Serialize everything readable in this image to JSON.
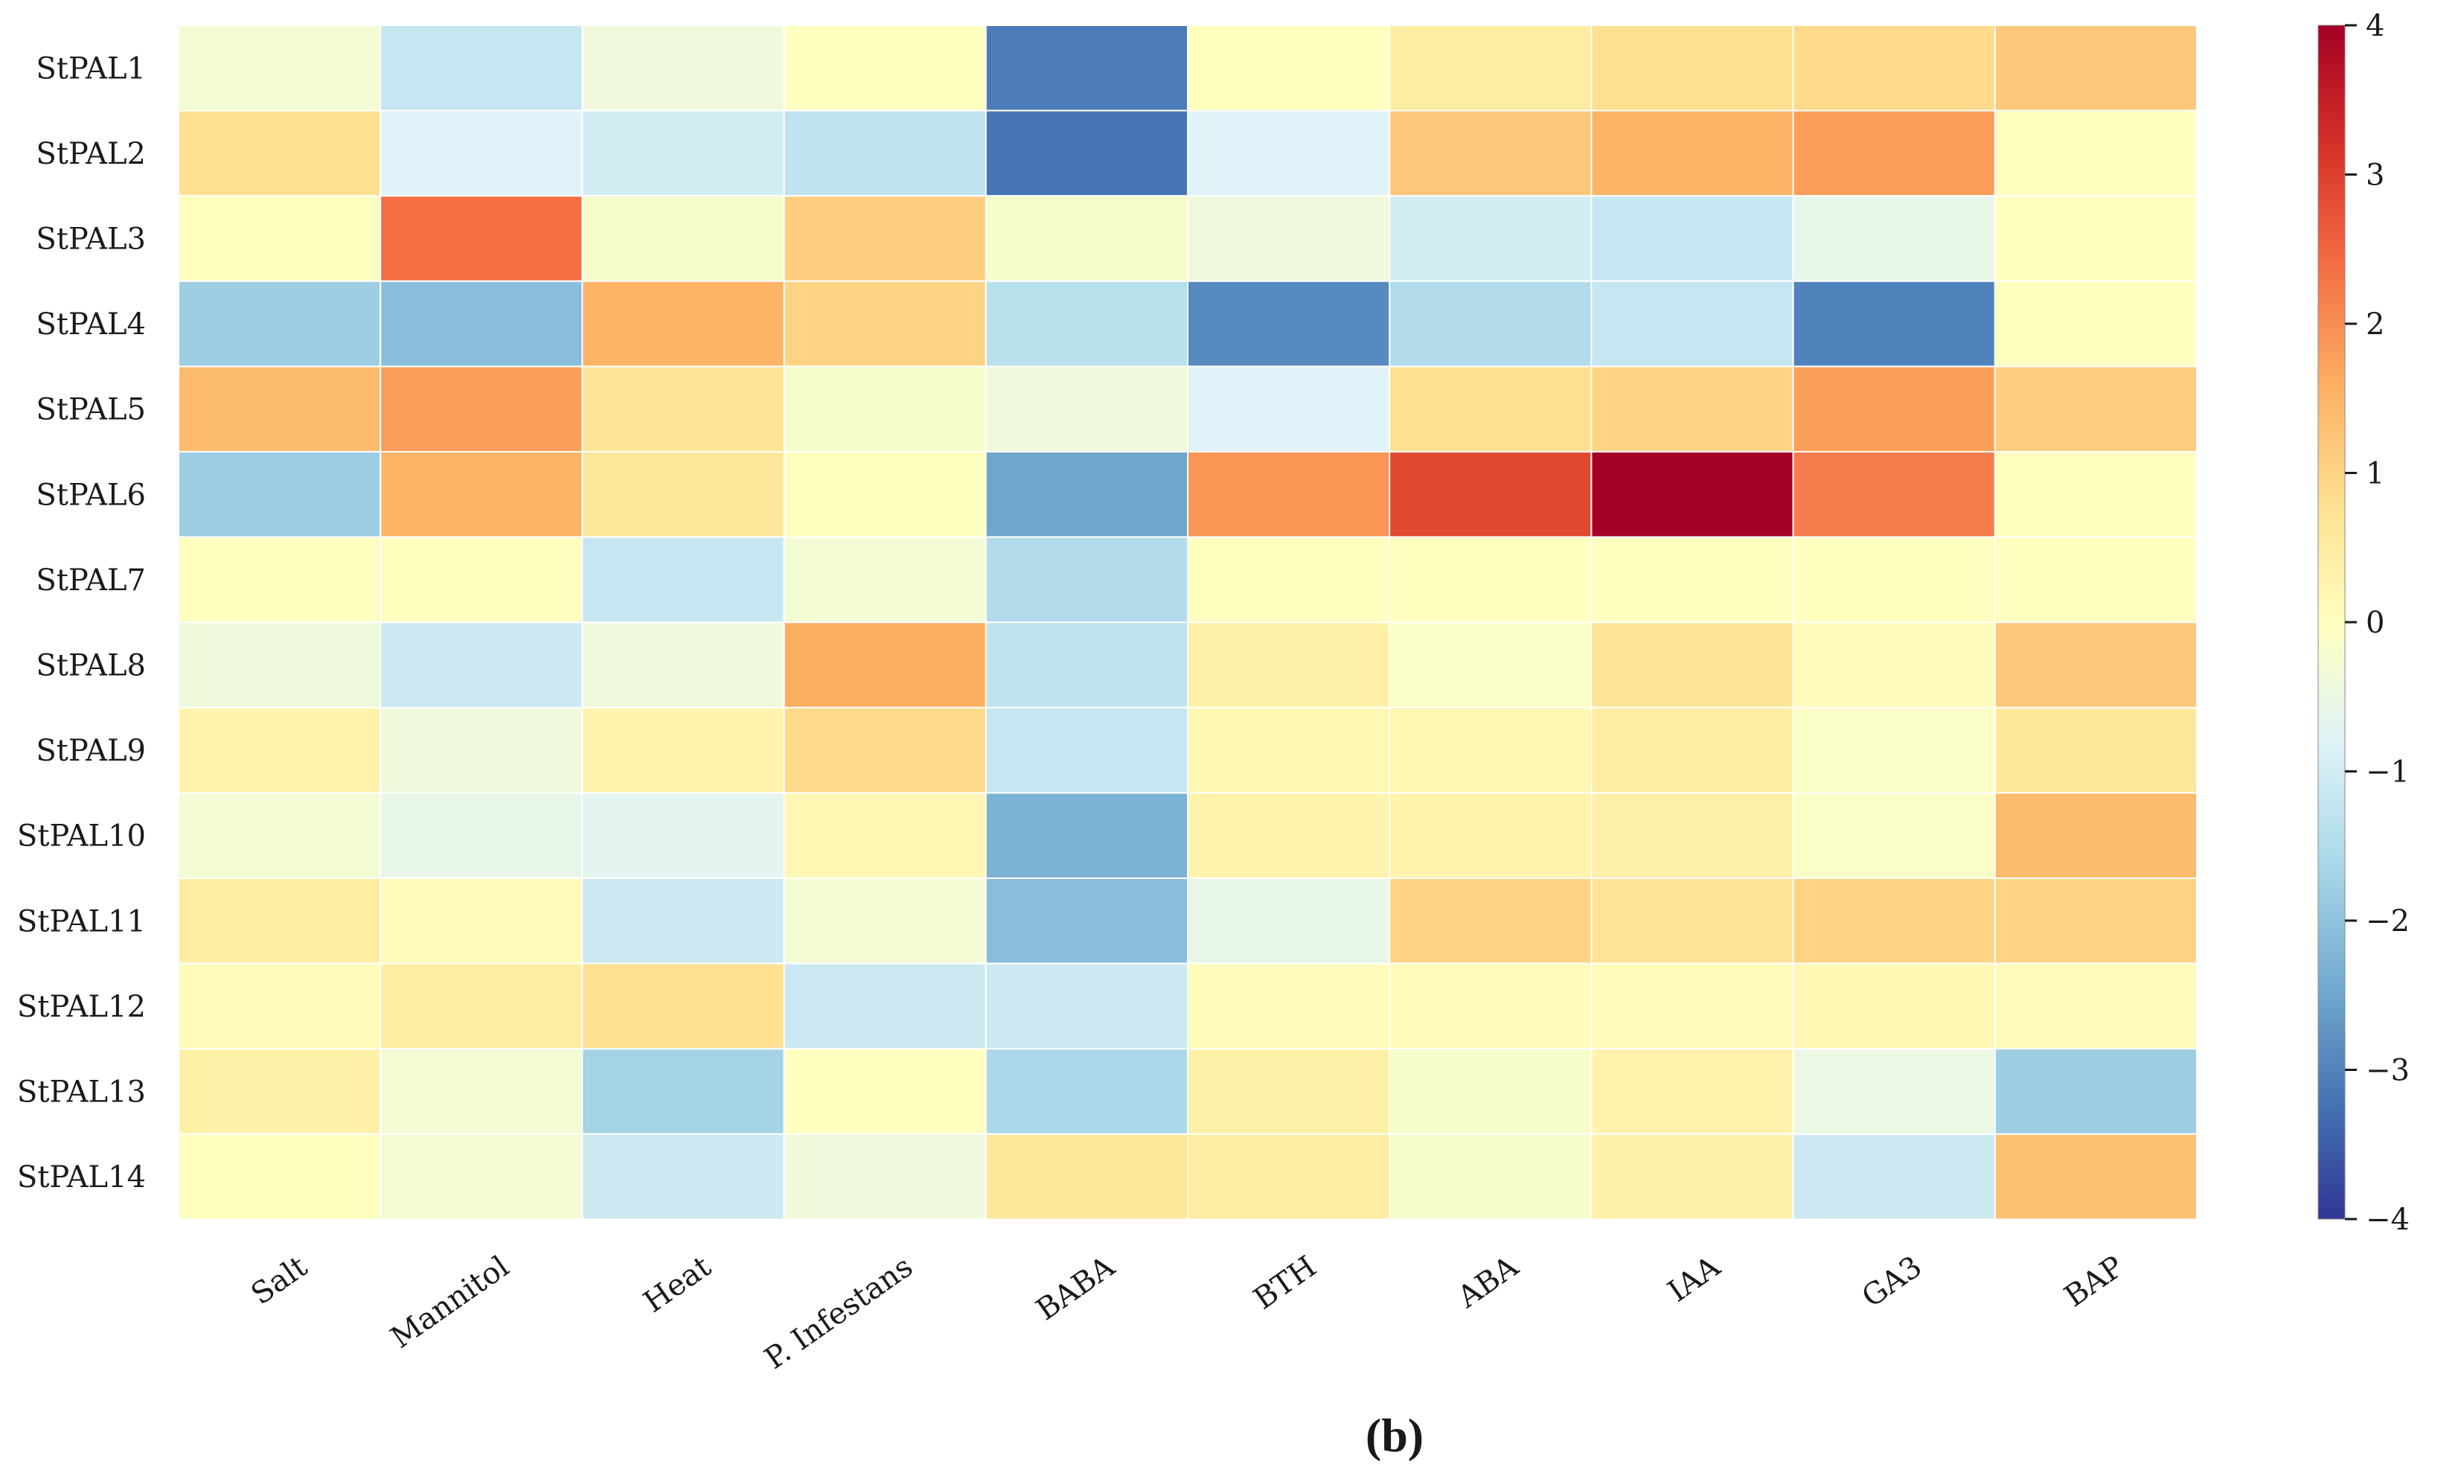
{
  "chart_data": {
    "type": "heatmap",
    "rows": [
      "StPAL1",
      "StPAL2",
      "StPAL3",
      "StPAL4",
      "StPAL5",
      "StPAL6",
      "StPAL7",
      "StPAL8",
      "StPAL9",
      "StPAL10",
      "StPAL11",
      "StPAL12",
      "StPAL13",
      "StPAL14"
    ],
    "columns": [
      "Salt",
      "Mannitol",
      "Heat",
      "P. Infestans",
      "BABA",
      "BTH",
      "ABA",
      "IAA",
      "GA3",
      "BAP"
    ],
    "values": [
      [
        -0.3,
        -1.2,
        -0.4,
        0.0,
        -3.1,
        0.0,
        0.5,
        0.8,
        0.9,
        1.2
      ],
      [
        0.8,
        -0.8,
        -1.0,
        -1.3,
        -3.2,
        -0.8,
        1.2,
        1.5,
        1.8,
        0.0
      ],
      [
        0.0,
        2.4,
        -0.2,
        1.1,
        -0.2,
        -0.4,
        -1.0,
        -1.2,
        -0.6,
        0.0
      ],
      [
        -1.8,
        -2.1,
        1.5,
        1.0,
        -1.4,
        -2.9,
        -1.5,
        -1.2,
        -3.0,
        0.0
      ],
      [
        1.4,
        1.8,
        0.7,
        -0.2,
        -0.4,
        -0.8,
        0.8,
        1.0,
        1.8,
        1.1
      ],
      [
        -1.8,
        1.5,
        0.6,
        0.0,
        -2.5,
        1.9,
        2.9,
        4.0,
        2.2,
        0.0
      ],
      [
        0.0,
        0.0,
        -1.2,
        -0.3,
        -1.5,
        0.0,
        0.0,
        0.0,
        0.0,
        0.0
      ],
      [
        -0.4,
        -1.1,
        -0.4,
        1.6,
        -1.3,
        0.4,
        -0.1,
        0.7,
        0.1,
        1.2
      ],
      [
        0.3,
        -0.4,
        0.3,
        0.9,
        -1.2,
        0.2,
        0.2,
        0.5,
        -0.1,
        0.6
      ],
      [
        -0.3,
        -0.6,
        -0.7,
        0.2,
        -2.3,
        0.3,
        0.3,
        0.4,
        -0.1,
        1.4
      ],
      [
        0.5,
        0.1,
        -1.1,
        -0.3,
        -2.1,
        -0.6,
        1.0,
        0.7,
        1.0,
        1.0
      ],
      [
        0.1,
        0.5,
        0.8,
        -1.1,
        -1.1,
        0.1,
        0.1,
        0.1,
        0.2,
        0.1
      ],
      [
        0.4,
        -0.3,
        -1.7,
        0.0,
        -1.6,
        0.4,
        -0.2,
        0.3,
        -0.5,
        -1.8
      ],
      [
        0.0,
        -0.3,
        -1.1,
        -0.4,
        0.6,
        0.5,
        -0.2,
        0.4,
        -1.1,
        1.3
      ]
    ],
    "vmin": -4,
    "vmax": 4,
    "colormap": "RdYlBu_r",
    "colorbar_ticks": [
      -4,
      -3,
      -2,
      -1,
      0,
      1,
      2,
      3,
      4
    ],
    "colorbar_tick_labels": [
      "−4",
      "−3",
      "−2",
      "−1",
      "0",
      "1",
      "2",
      "3",
      "4"
    ],
    "colorbar_stops": [
      "#313695",
      "#4575b4",
      "#74add1",
      "#abd9e9",
      "#e0f3f8",
      "#ffffbf",
      "#fee090",
      "#fdae61",
      "#f46d43",
      "#d73027",
      "#a50026"
    ],
    "grid_line_color": "#ffffff",
    "legend_placement": "right"
  },
  "caption": "(b)"
}
